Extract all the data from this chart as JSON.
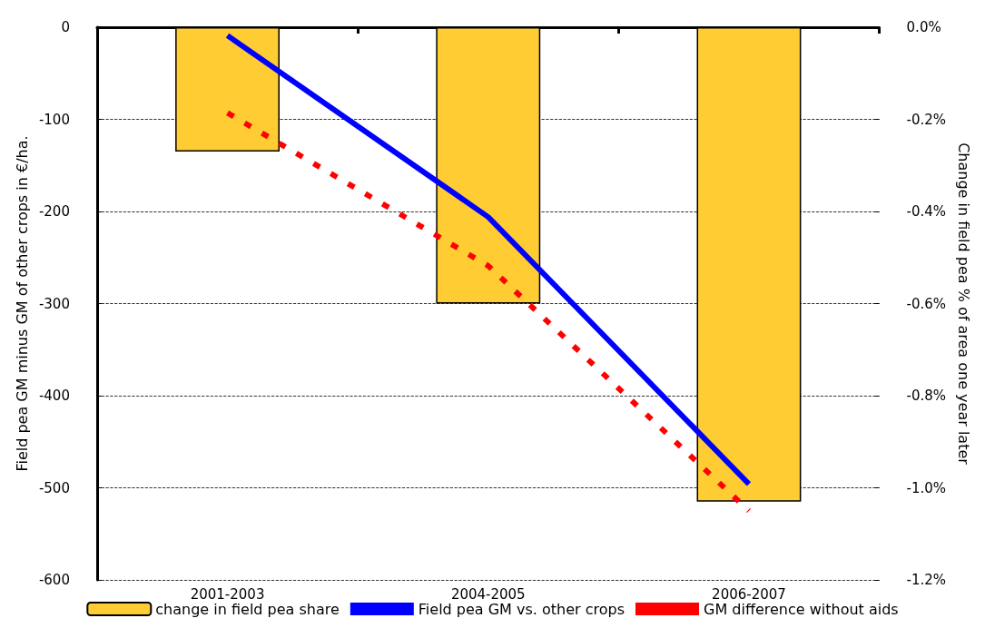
{
  "chart_data": {
    "type": "bar",
    "ylabel": "Field pea GM minus GM of other crops in €/ha.",
    "y2label": "Change in field pea % of area one year later",
    "categories": [
      "2001-2003",
      "2004-2005",
      "2006-2007"
    ],
    "series": [
      {
        "name": "change in field pea share",
        "axis": "y2",
        "color": "#ffcc33",
        "values": [
          -0.27,
          -0.6,
          -1.03
        ]
      },
      {
        "name": "Field pea GM vs. other crops",
        "type": "line",
        "color": "#0000ff",
        "line_style": "solid",
        "values": [
          -9,
          -206,
          -496
        ]
      },
      {
        "name": "GM difference without aids",
        "type": "line",
        "color": "#ff0000",
        "line_style": "dashed",
        "values": [
          -93,
          -259,
          -525
        ]
      }
    ],
    "ylim": [
      -600,
      0
    ],
    "yticks": [
      -600,
      -500,
      -400,
      -300,
      -200,
      -100,
      0
    ],
    "y2lim": [
      -1.2,
      0
    ],
    "y2ticks": [
      {
        "value": -1.2,
        "label": "-1.2%"
      },
      {
        "value": -1.0,
        "label": "-1.0%"
      },
      {
        "value": -0.8,
        "label": "-0.8%"
      },
      {
        "value": -0.6,
        "label": "-0.6%"
      },
      {
        "value": -0.4,
        "label": "-0.4%"
      },
      {
        "value": -0.2,
        "label": "-0.2%"
      },
      {
        "value": 0,
        "label": "0.0%"
      }
    ],
    "grid": "y",
    "legend": "bottom",
    "marker": "none"
  }
}
